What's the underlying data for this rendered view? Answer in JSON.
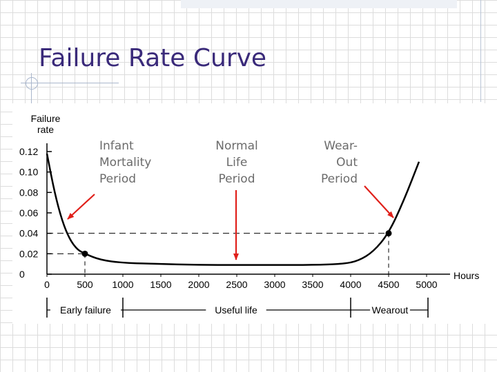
{
  "slide": {
    "title": "Failure Rate Curve"
  },
  "annotations": {
    "infant": "Infant\nMortality\nPeriod",
    "normal": "Normal\nLife\nPeriod",
    "wearout": "Wear-\nOut\nPeriod"
  },
  "colors": {
    "title": "#3a2a7a",
    "arrow": "#e0201a",
    "curve": "#000000"
  },
  "chart_data": {
    "type": "line",
    "title": "",
    "ylabel": "Failure rate",
    "xlabel": "Hours",
    "xlim": [
      0,
      5000
    ],
    "ylim": [
      0,
      0.12
    ],
    "x_ticks": [
      "0",
      "500",
      "1000",
      "1500",
      "2000",
      "2500",
      "3000",
      "3500",
      "4000",
      "4500",
      "5000"
    ],
    "y_ticks": [
      "0",
      "0.02",
      "0.04",
      "0.06",
      "0.08",
      "0.10",
      "0.12"
    ],
    "series": [
      {
        "x": [
          0,
          100,
          200,
          300,
          400,
          500,
          700,
          1000,
          1500,
          2000,
          2500,
          3000,
          3500,
          3900,
          4100,
          4300,
          4500,
          4700,
          4900
        ],
        "values": [
          0.118,
          0.08,
          0.052,
          0.034,
          0.024,
          0.02,
          0.014,
          0.011,
          0.01,
          0.009,
          0.009,
          0.009,
          0.009,
          0.01,
          0.013,
          0.022,
          0.04,
          0.072,
          0.11
        ]
      }
    ],
    "markers": [
      {
        "x": 500,
        "y": 0.02
      },
      {
        "x": 4500,
        "y": 0.04
      }
    ],
    "reference_lines": {
      "y": [
        0.02,
        0.04
      ],
      "x": [
        500,
        4500
      ]
    },
    "phases": [
      {
        "label": "Early failure",
        "start": 0,
        "end": 1000
      },
      {
        "label": "Useful life",
        "start": 1000,
        "end": 4000
      },
      {
        "label": "Wearout",
        "start": 4000,
        "end": 5000
      }
    ],
    "grid": false,
    "legend": "none"
  }
}
